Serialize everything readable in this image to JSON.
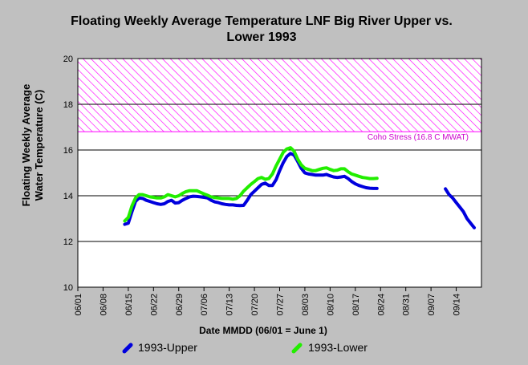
{
  "chart_data": {
    "type": "line",
    "title_lines": [
      "Floating Weekly Average Temperature LNF Big River Upper vs.",
      "Lower 1993"
    ],
    "xlabel": "Date MMDD (06/01 = June 1)",
    "ylabel_lines": [
      "Floating Weekly Average",
      "Water Temperature (C)"
    ],
    "x_ticks": [
      "06/01",
      "06/08",
      "06/15",
      "06/22",
      "06/29",
      "07/06",
      "07/13",
      "07/20",
      "07/27",
      "08/03",
      "08/10",
      "08/17",
      "08/24",
      "08/31",
      "09/07",
      "09/14"
    ],
    "x_unit": "day",
    "x_start": "06/01",
    "x_range": [
      0,
      112
    ],
    "y_ticks": [
      10,
      12,
      14,
      16,
      18,
      20
    ],
    "ylim": [
      10,
      20
    ],
    "grid": "horizontal",
    "threshold": {
      "label": "Coho Stress (16.8 C MWAT)",
      "y_from": 16.8,
      "y_to": 20,
      "color": "#ff00ff"
    },
    "series": [
      {
        "name": "1993-Upper",
        "color": "#0000dd",
        "segments": [
          [
            [
              13,
              12.75
            ],
            [
              14,
              12.8
            ],
            [
              15,
              13.3
            ],
            [
              16,
              13.75
            ],
            [
              17,
              13.9
            ],
            [
              18,
              13.88
            ],
            [
              19,
              13.8
            ],
            [
              20,
              13.75
            ],
            [
              21,
              13.7
            ],
            [
              22,
              13.65
            ],
            [
              23,
              13.62
            ],
            [
              24,
              13.65
            ],
            [
              25,
              13.75
            ],
            [
              26,
              13.8
            ],
            [
              27,
              13.68
            ],
            [
              28,
              13.7
            ],
            [
              29,
              13.8
            ],
            [
              30,
              13.88
            ],
            [
              31,
              13.95
            ],
            [
              32,
              13.98
            ],
            [
              33,
              13.97
            ],
            [
              34,
              13.95
            ],
            [
              35,
              13.93
            ],
            [
              36,
              13.9
            ],
            [
              37,
              13.8
            ],
            [
              38,
              13.73
            ],
            [
              39,
              13.7
            ],
            [
              40,
              13.65
            ],
            [
              41,
              13.62
            ],
            [
              42,
              13.6
            ],
            [
              43,
              13.6
            ],
            [
              44,
              13.58
            ],
            [
              45,
              13.57
            ],
            [
              46,
              13.58
            ],
            [
              47,
              13.8
            ],
            [
              48,
              14.05
            ],
            [
              49,
              14.2
            ],
            [
              50,
              14.35
            ],
            [
              51,
              14.5
            ],
            [
              52,
              14.55
            ],
            [
              53,
              14.45
            ],
            [
              54,
              14.45
            ],
            [
              55,
              14.7
            ],
            [
              56,
              15.1
            ],
            [
              57,
              15.45
            ],
            [
              58,
              15.72
            ],
            [
              59,
              15.85
            ],
            [
              60,
              15.78
            ],
            [
              61,
              15.5
            ],
            [
              62,
              15.2
            ],
            [
              63,
              15.0
            ],
            [
              64,
              14.95
            ],
            [
              65,
              14.93
            ],
            [
              66,
              14.9
            ],
            [
              67,
              14.9
            ],
            [
              68,
              14.9
            ],
            [
              69,
              14.93
            ],
            [
              70,
              14.87
            ],
            [
              71,
              14.82
            ],
            [
              72,
              14.8
            ],
            [
              73,
              14.82
            ],
            [
              74,
              14.85
            ],
            [
              75,
              14.75
            ],
            [
              76,
              14.62
            ],
            [
              77,
              14.52
            ],
            [
              78,
              14.45
            ],
            [
              79,
              14.4
            ],
            [
              80,
              14.35
            ],
            [
              81,
              14.33
            ],
            [
              82,
              14.32
            ],
            [
              83,
              14.32
            ]
          ],
          [
            [
              102,
              14.3
            ],
            [
              103,
              14.05
            ],
            [
              104,
              13.9
            ],
            [
              105,
              13.7
            ],
            [
              106,
              13.5
            ],
            [
              107,
              13.3
            ],
            [
              108,
              13.0
            ],
            [
              109,
              12.8
            ],
            [
              110,
              12.6
            ]
          ]
        ]
      },
      {
        "name": "1993-Lower",
        "color": "#22ee00",
        "segments": [
          [
            [
              13,
              12.9
            ],
            [
              14,
              13.05
            ],
            [
              15,
              13.55
            ],
            [
              16,
              13.9
            ],
            [
              17,
              14.05
            ],
            [
              18,
              14.05
            ],
            [
              19,
              14.0
            ],
            [
              20,
              13.95
            ],
            [
              21,
              13.93
            ],
            [
              22,
              13.9
            ],
            [
              23,
              13.9
            ],
            [
              24,
              13.95
            ],
            [
              25,
              14.05
            ],
            [
              26,
              14.0
            ],
            [
              27,
              13.95
            ],
            [
              28,
              14.0
            ],
            [
              29,
              14.1
            ],
            [
              30,
              14.18
            ],
            [
              31,
              14.22
            ],
            [
              32,
              14.22
            ],
            [
              33,
              14.22
            ],
            [
              34,
              14.15
            ],
            [
              35,
              14.08
            ],
            [
              36,
              14.02
            ],
            [
              37,
              13.95
            ],
            [
              38,
              13.92
            ],
            [
              39,
              13.9
            ],
            [
              40,
              13.88
            ],
            [
              41,
              13.88
            ],
            [
              42,
              13.88
            ],
            [
              43,
              13.85
            ],
            [
              44,
              13.88
            ],
            [
              45,
              14.0
            ],
            [
              46,
              14.2
            ],
            [
              47,
              14.35
            ],
            [
              48,
              14.5
            ],
            [
              49,
              14.62
            ],
            [
              50,
              14.75
            ],
            [
              51,
              14.8
            ],
            [
              52,
              14.72
            ],
            [
              53,
              14.75
            ],
            [
              54,
              14.95
            ],
            [
              55,
              15.3
            ],
            [
              56,
              15.6
            ],
            [
              57,
              15.9
            ],
            [
              58,
              16.05
            ],
            [
              59,
              16.1
            ],
            [
              60,
              15.95
            ],
            [
              61,
              15.6
            ],
            [
              62,
              15.35
            ],
            [
              63,
              15.2
            ],
            [
              64,
              15.15
            ],
            [
              65,
              15.1
            ],
            [
              66,
              15.1
            ],
            [
              67,
              15.15
            ],
            [
              68,
              15.2
            ],
            [
              69,
              15.22
            ],
            [
              70,
              15.15
            ],
            [
              71,
              15.1
            ],
            [
              72,
              15.12
            ],
            [
              73,
              15.18
            ],
            [
              74,
              15.18
            ],
            [
              75,
              15.05
            ],
            [
              76,
              14.95
            ],
            [
              77,
              14.9
            ],
            [
              78,
              14.85
            ],
            [
              79,
              14.8
            ],
            [
              80,
              14.78
            ],
            [
              81,
              14.75
            ],
            [
              82,
              14.75
            ],
            [
              83,
              14.76
            ]
          ]
        ]
      }
    ]
  }
}
